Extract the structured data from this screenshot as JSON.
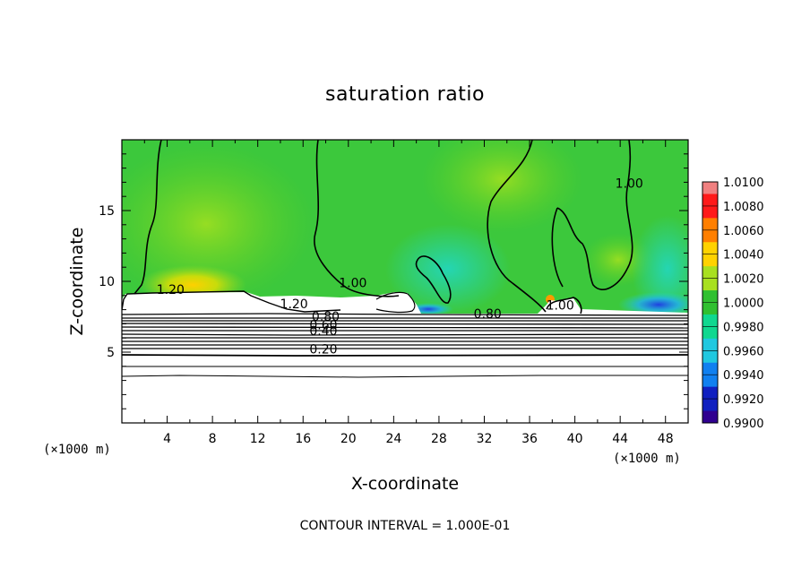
{
  "chart_data": {
    "type": "heatmap",
    "title": "saturation ratio",
    "xlabel": "X-coordinate",
    "ylabel": "Z-coordinate",
    "x_unit_label": "(×1000 m)",
    "y_unit_label": "(×1000 m)",
    "xlim": [
      0,
      50
    ],
    "ylim": [
      0,
      20
    ],
    "x_ticks": [
      4,
      8,
      12,
      16,
      20,
      24,
      28,
      32,
      36,
      40,
      44,
      48
    ],
    "y_ticks": [
      5,
      10,
      15
    ],
    "colorbar": {
      "levels": [
        "1.0100",
        "1.0080",
        "1.0060",
        "1.0040",
        "1.0020",
        "1.0000",
        "0.9980",
        "0.9960",
        "0.9940",
        "0.9920",
        "0.9900"
      ],
      "colors": [
        "#f08080",
        "#ff1a1a",
        "#ff7f00",
        "#ffd200",
        "#a8e020",
        "#30c030",
        "#10d890",
        "#20c8e0",
        "#1080f0",
        "#1020c0",
        "#300090"
      ]
    },
    "contour_labels": [
      {
        "text": "1.20",
        "x": 4.3,
        "z": 9.1
      },
      {
        "text": "1.20",
        "x": 15.2,
        "z": 8.1
      },
      {
        "text": "1.00",
        "x": 20.4,
        "z": 9.6
      },
      {
        "text": "1.00",
        "x": 38.7,
        "z": 8.0
      },
      {
        "text": "1.00",
        "x": 44.8,
        "z": 16.6
      },
      {
        "text": "0.80",
        "x": 18.0,
        "z": 7.2
      },
      {
        "text": "0.80",
        "x": 32.3,
        "z": 7.4
      },
      {
        "text": "0.60",
        "x": 17.8,
        "z": 6.6
      },
      {
        "text": "0.40",
        "x": 17.8,
        "z": 6.2
      },
      {
        "text": "0.20",
        "x": 17.8,
        "z": 4.9
      }
    ],
    "contour_interval_text": "CONTOUR INTERVAL = 1.000E-01"
  }
}
